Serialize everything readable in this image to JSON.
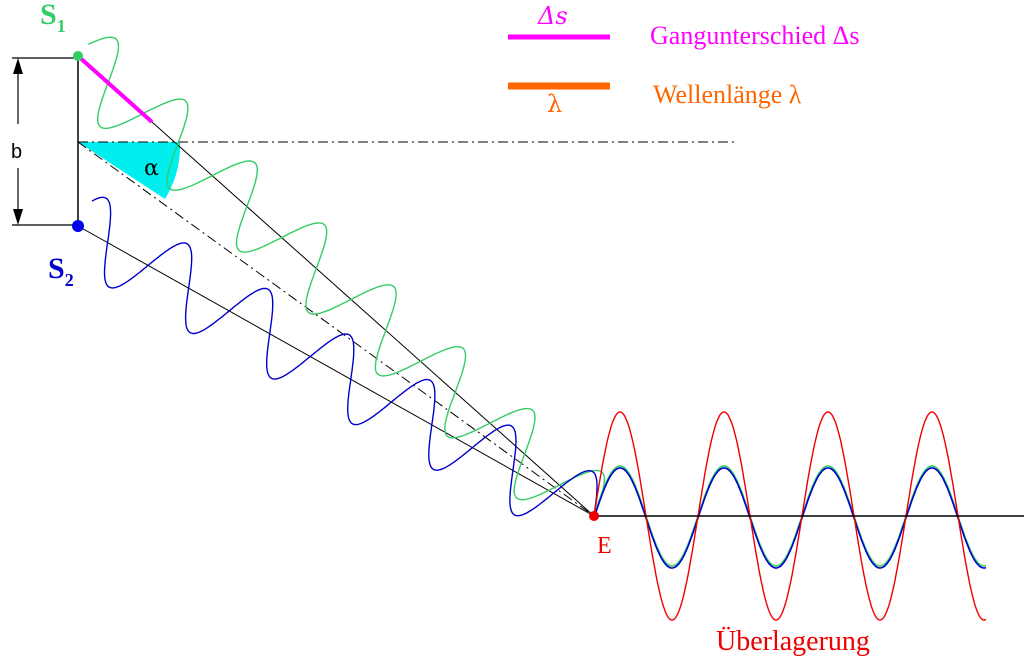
{
  "labels": {
    "s1_letter": "S",
    "s1_sub": "1",
    "s2_letter": "S",
    "s2_sub": "2",
    "b": "b",
    "alpha": "α",
    "e": "E",
    "superposition": "Überlagerung"
  },
  "legend": [
    {
      "symbol": "Δs",
      "text": "Gangunterschied Δs",
      "color": "#ff00ff"
    },
    {
      "symbol": "λ",
      "text": "Wellenlänge λ",
      "color": "#ff6600"
    }
  ],
  "colors": {
    "wave1": "#33cc66",
    "wave2": "#0000cc",
    "sum": "#ee0000",
    "angle_fill": "#00eeee",
    "path_diff": "#ff00ff",
    "lines": "#000000"
  },
  "icons": [
    "arrow-up-icon",
    "arrow-down-icon"
  ]
}
